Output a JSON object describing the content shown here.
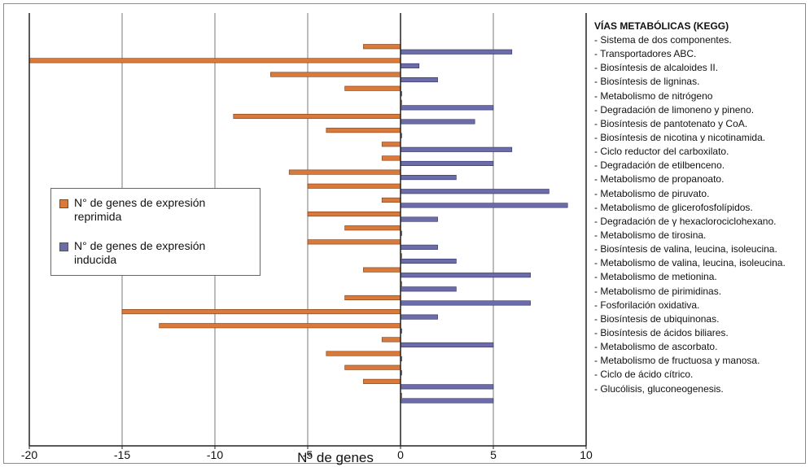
{
  "legend": {
    "repressed_label": "N° de genes de expresión reprimida",
    "induced_label": "N° de genes de expresión inducida"
  },
  "pathways_title": "VÍAS METABÓLICAS (KEGG)",
  "colors": {
    "repressed": "#d9793a",
    "induced": "#6c6ca8",
    "grid": "#7a7a7a",
    "axis": "#222222"
  },
  "chart_data": {
    "type": "bar",
    "orientation": "horizontal",
    "xlabel": "N° de genes",
    "xlim": [
      -20,
      10
    ],
    "x_ticks": [
      -20,
      -15,
      -10,
      -5,
      0,
      5,
      10
    ],
    "x_tick_labels": [
      "-20",
      "-15",
      "-10",
      "-5",
      "0",
      "5",
      "10"
    ],
    "grid": true,
    "legend_position": "left",
    "categories": [
      "- Sistema de dos componentes.",
      "- Transportadores ABC.",
      "- Biosíntesis de alcaloides II.",
      "- Biosíntesis de ligninas.",
      "- Metabolismo de nitrógeno",
      "- Degradación de limoneno y pineno.",
      "- Biosíntesis de pantotenato y CoA.",
      "- Biosíntesis de nicotina y nicotinamida.",
      "- Ciclo reductor del carboxilato.",
      "- Degradación de etilbenceno.",
      "- Metabolismo de propanoato.",
      "- Metabolismo de piruvato.",
      "- Metabolismo de glicerofosfolípidos.",
      "- Degradación de γ hexaclorociclohexano.",
      "- Metabolismo de tirosina.",
      "- Biosíntesis de valina, leucina, isoleucina.",
      "- Metabolismo de valina, leucina, isoleucina.",
      "- Metabolismo de metionina.",
      "- Metabolismo de pirimidinas.",
      "- Fosforilación oxidativa.",
      "- Biosíntesis de ubiquinonas.",
      "- Biosíntesis de ácidos biliares.",
      "- Metabolismo de ascorbato.",
      "- Metabolismo de fructuosa y manosa.",
      "- Ciclo de ácido cítrico.",
      "- Glucólisis, gluconeogenesis."
    ],
    "series": [
      {
        "name": "N° de genes de expresión reprimida",
        "values": [
          -2,
          -20,
          -7,
          -3,
          0,
          -9,
          -4,
          -1,
          -1,
          -6,
          -5,
          -1,
          -5,
          -3,
          -5,
          0,
          -2,
          0,
          -3,
          -15,
          -13,
          -1,
          -4,
          -3,
          -2,
          0
        ]
      },
      {
        "name": "N° de genes de expresión inducida",
        "values": [
          6,
          1,
          2,
          0,
          5,
          4,
          0,
          6,
          5,
          3,
          8,
          9,
          2,
          0,
          2,
          3,
          7,
          3,
          7,
          2,
          0,
          5,
          0,
          0,
          5,
          5
        ]
      }
    ]
  }
}
